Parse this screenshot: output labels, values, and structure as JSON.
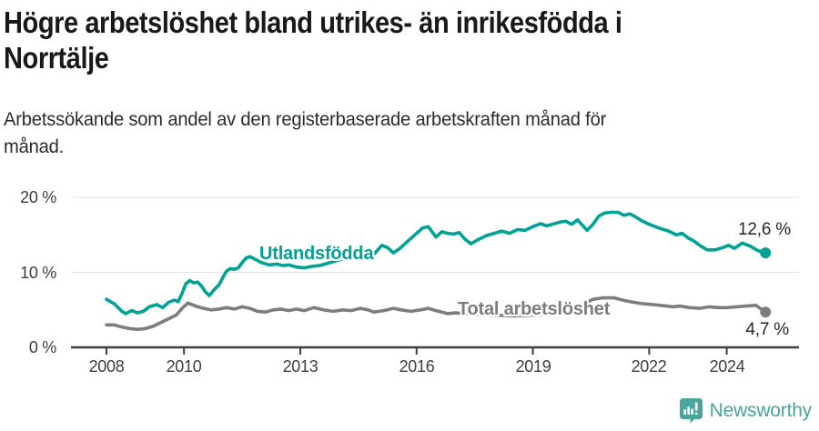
{
  "header": {
    "title_lines": [
      "Högre arbetslöshet bland utrikes- än inrikesfödda i",
      "Norrtälje"
    ],
    "subtitle_lines": [
      "Arbetssökande som andel av den registerbaserade arbetskraften månad för",
      "månad."
    ]
  },
  "colors": {
    "accent_teal": "#00a296",
    "line_gray": "#7d7d7d",
    "gridline": "#e1e1e1",
    "axis": "#3f3f3f",
    "brand_teal": "#46a49b"
  },
  "branding": {
    "name": "Newsworthy"
  },
  "chart_data": {
    "type": "line",
    "title": "Högre arbetslöshet bland utrikes- än inrikesfödda i Norrtälje",
    "subtitle": "Arbetssökande som andel av den registerbaserade arbetskraften månad för månad.",
    "xlabel": "",
    "ylabel": "",
    "ylim": [
      0,
      20
    ],
    "xlim": [
      2008,
      2025
    ],
    "grid": "horizontal",
    "legend_position": "inline",
    "y_gridlines": [
      10,
      20
    ],
    "y_ticks": [
      {
        "value": 0,
        "label": "0 %"
      },
      {
        "value": 10,
        "label": "10 %"
      },
      {
        "value": 20,
        "label": "20 %"
      }
    ],
    "x_ticks": [
      {
        "value": 2008,
        "label": "2008"
      },
      {
        "value": 2010,
        "label": "2010"
      },
      {
        "value": 2013,
        "label": "2013"
      },
      {
        "value": 2016,
        "label": "2016"
      },
      {
        "value": 2019,
        "label": "2019"
      },
      {
        "value": 2022,
        "label": "2022"
      },
      {
        "value": 2024,
        "label": "2024"
      }
    ],
    "series": [
      {
        "id": "utlandsfodda",
        "name": "Utlandsfödda",
        "color": "#00a296",
        "end_label": "12,6 %",
        "end_value": 12.6,
        "points": [
          [
            2008.0,
            6.4
          ],
          [
            2008.2,
            5.8
          ],
          [
            2008.4,
            4.8
          ],
          [
            2008.5,
            4.5
          ],
          [
            2008.65,
            4.9
          ],
          [
            2008.8,
            4.6
          ],
          [
            2008.95,
            4.8
          ],
          [
            2009.1,
            5.4
          ],
          [
            2009.3,
            5.7
          ],
          [
            2009.45,
            5.3
          ],
          [
            2009.6,
            6.0
          ],
          [
            2009.75,
            6.3
          ],
          [
            2009.85,
            6.1
          ],
          [
            2009.95,
            7.2
          ],
          [
            2010.05,
            8.5
          ],
          [
            2010.15,
            8.9
          ],
          [
            2010.25,
            8.6
          ],
          [
            2010.35,
            8.7
          ],
          [
            2010.45,
            8.2
          ],
          [
            2010.55,
            7.4
          ],
          [
            2010.65,
            6.9
          ],
          [
            2010.8,
            7.8
          ],
          [
            2010.9,
            8.3
          ],
          [
            2011.0,
            9.3
          ],
          [
            2011.1,
            10.2
          ],
          [
            2011.2,
            10.5
          ],
          [
            2011.3,
            10.4
          ],
          [
            2011.4,
            10.6
          ],
          [
            2011.5,
            11.3
          ],
          [
            2011.6,
            11.9
          ],
          [
            2011.7,
            12.1
          ],
          [
            2011.85,
            11.7
          ],
          [
            2012.0,
            11.3
          ],
          [
            2012.2,
            11.0
          ],
          [
            2012.4,
            11.1
          ],
          [
            2012.55,
            10.9
          ],
          [
            2012.7,
            11.0
          ],
          [
            2012.9,
            10.7
          ],
          [
            2013.1,
            10.6
          ],
          [
            2013.3,
            10.8
          ],
          [
            2013.5,
            10.9
          ],
          [
            2013.7,
            11.2
          ],
          [
            2013.9,
            11.5
          ],
          [
            2014.1,
            11.8
          ],
          [
            2014.3,
            12.1
          ],
          [
            2014.5,
            12.3
          ],
          [
            2014.7,
            12.2
          ],
          [
            2014.9,
            12.4
          ],
          [
            2015.1,
            13.6
          ],
          [
            2015.25,
            13.3
          ],
          [
            2015.4,
            12.6
          ],
          [
            2015.55,
            13.1
          ],
          [
            2015.7,
            13.8
          ],
          [
            2015.85,
            14.5
          ],
          [
            2016.0,
            15.2
          ],
          [
            2016.15,
            15.9
          ],
          [
            2016.3,
            16.1
          ],
          [
            2016.5,
            14.7
          ],
          [
            2016.65,
            15.4
          ],
          [
            2016.8,
            15.2
          ],
          [
            2016.95,
            15.1
          ],
          [
            2017.1,
            15.3
          ],
          [
            2017.25,
            14.4
          ],
          [
            2017.4,
            13.8
          ],
          [
            2017.6,
            14.4
          ],
          [
            2017.8,
            14.9
          ],
          [
            2018.0,
            15.2
          ],
          [
            2018.2,
            15.5
          ],
          [
            2018.4,
            15.2
          ],
          [
            2018.6,
            15.7
          ],
          [
            2018.8,
            15.6
          ],
          [
            2019.0,
            16.1
          ],
          [
            2019.2,
            16.5
          ],
          [
            2019.35,
            16.2
          ],
          [
            2019.5,
            16.4
          ],
          [
            2019.7,
            16.7
          ],
          [
            2019.85,
            16.8
          ],
          [
            2020.0,
            16.4
          ],
          [
            2020.15,
            17.0
          ],
          [
            2020.4,
            15.6
          ],
          [
            2020.55,
            16.4
          ],
          [
            2020.7,
            17.5
          ],
          [
            2020.85,
            17.9
          ],
          [
            2021.0,
            18.0
          ],
          [
            2021.2,
            18.0
          ],
          [
            2021.35,
            17.6
          ],
          [
            2021.5,
            17.8
          ],
          [
            2021.65,
            17.4
          ],
          [
            2021.8,
            16.9
          ],
          [
            2022.0,
            16.4
          ],
          [
            2022.25,
            15.9
          ],
          [
            2022.5,
            15.5
          ],
          [
            2022.7,
            15.0
          ],
          [
            2022.85,
            15.2
          ],
          [
            2023.0,
            14.6
          ],
          [
            2023.15,
            14.2
          ],
          [
            2023.3,
            13.6
          ],
          [
            2023.5,
            13.0
          ],
          [
            2023.7,
            13.0
          ],
          [
            2023.9,
            13.3
          ],
          [
            2024.05,
            13.6
          ],
          [
            2024.2,
            13.2
          ],
          [
            2024.4,
            13.9
          ],
          [
            2024.6,
            13.5
          ],
          [
            2024.8,
            12.9
          ],
          [
            2025.0,
            12.6
          ]
        ]
      },
      {
        "id": "total",
        "name": "Total arbetslöshet",
        "color": "#7d7d7d",
        "end_label": "4,7 %",
        "end_value": 4.7,
        "points": [
          [
            2008.0,
            3.0
          ],
          [
            2008.2,
            3.0
          ],
          [
            2008.4,
            2.7
          ],
          [
            2008.6,
            2.5
          ],
          [
            2008.8,
            2.4
          ],
          [
            2009.0,
            2.5
          ],
          [
            2009.2,
            2.8
          ],
          [
            2009.4,
            3.3
          ],
          [
            2009.6,
            3.8
          ],
          [
            2009.8,
            4.3
          ],
          [
            2009.95,
            5.2
          ],
          [
            2010.1,
            5.9
          ],
          [
            2010.3,
            5.5
          ],
          [
            2010.5,
            5.2
          ],
          [
            2010.7,
            5.0
          ],
          [
            2010.9,
            5.1
          ],
          [
            2011.1,
            5.3
          ],
          [
            2011.3,
            5.1
          ],
          [
            2011.5,
            5.4
          ],
          [
            2011.7,
            5.2
          ],
          [
            2011.9,
            4.8
          ],
          [
            2012.1,
            4.7
          ],
          [
            2012.3,
            5.0
          ],
          [
            2012.5,
            5.1
          ],
          [
            2012.7,
            4.9
          ],
          [
            2012.9,
            5.1
          ],
          [
            2013.1,
            4.9
          ],
          [
            2013.35,
            5.3
          ],
          [
            2013.6,
            5.0
          ],
          [
            2013.85,
            4.8
          ],
          [
            2014.1,
            5.0
          ],
          [
            2014.3,
            4.9
          ],
          [
            2014.55,
            5.2
          ],
          [
            2014.75,
            5.0
          ],
          [
            2014.9,
            4.7
          ],
          [
            2015.15,
            4.9
          ],
          [
            2015.4,
            5.2
          ],
          [
            2015.6,
            5.0
          ],
          [
            2015.85,
            4.8
          ],
          [
            2016.1,
            5.0
          ],
          [
            2016.3,
            5.2
          ],
          [
            2016.5,
            4.9
          ],
          [
            2016.8,
            4.5
          ],
          [
            2017.0,
            4.6
          ],
          [
            2017.5,
            4.4
          ],
          [
            2018.0,
            4.3
          ],
          [
            2018.5,
            4.2
          ],
          [
            2019.0,
            4.3
          ],
          [
            2019.5,
            4.4
          ],
          [
            2020.0,
            4.8
          ],
          [
            2020.3,
            5.8
          ],
          [
            2020.55,
            6.4
          ],
          [
            2020.8,
            6.6
          ],
          [
            2021.1,
            6.6
          ],
          [
            2021.4,
            6.2
          ],
          [
            2021.6,
            6.0
          ],
          [
            2021.85,
            5.8
          ],
          [
            2022.1,
            5.7
          ],
          [
            2022.45,
            5.5
          ],
          [
            2022.6,
            5.4
          ],
          [
            2022.8,
            5.5
          ],
          [
            2023.05,
            5.3
          ],
          [
            2023.3,
            5.2
          ],
          [
            2023.55,
            5.4
          ],
          [
            2023.8,
            5.3
          ],
          [
            2024.0,
            5.3
          ],
          [
            2024.25,
            5.4
          ],
          [
            2024.5,
            5.5
          ],
          [
            2024.75,
            5.6
          ],
          [
            2025.0,
            4.7
          ]
        ]
      }
    ]
  }
}
